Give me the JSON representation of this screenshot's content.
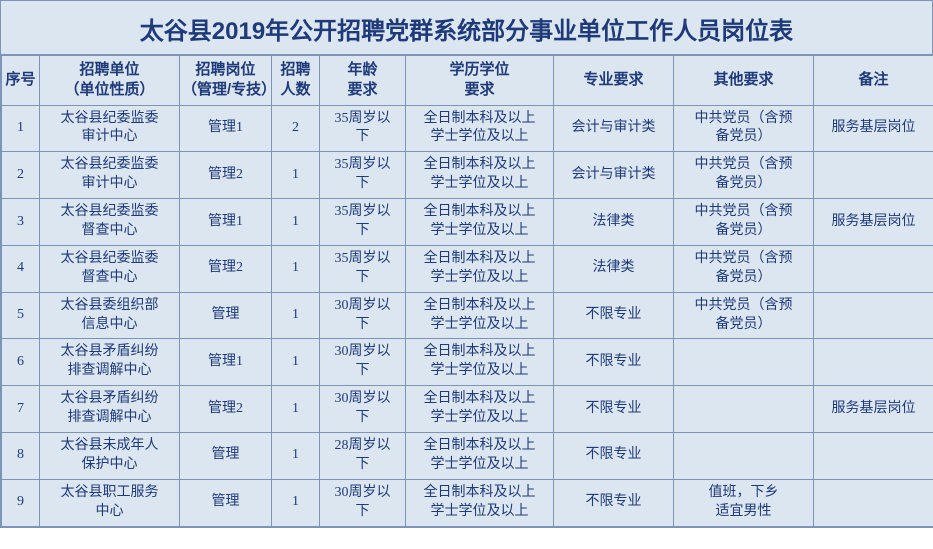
{
  "title": "太谷县2019年公开招聘党群系统部分事业单位工作人员岗位表",
  "title_fontsize": 24,
  "header_fontsize": 15,
  "cell_fontsize": 14,
  "colors": {
    "background": "#dce6f1",
    "border": "#7d94b8",
    "text": "#1e3a78"
  },
  "columns": [
    "序号",
    "招聘单位\n（单位性质）",
    "招聘岗位\n（管理/专技）",
    "招聘\n人数",
    "年龄\n要求",
    "学历学位\n要求",
    "专业要求",
    "其他要求",
    "备注"
  ],
  "rows": [
    {
      "seq": "1",
      "unit": "太谷县纪委监委\n审计中心",
      "post": "管理1",
      "num": "2",
      "age": "35周岁以\n下",
      "edu": "全日制本科及以上\n学士学位及以上",
      "major": "会计与审计类",
      "other": "中共党员（含预\n备党员）",
      "note": "服务基层岗位"
    },
    {
      "seq": "2",
      "unit": "太谷县纪委监委\n审计中心",
      "post": "管理2",
      "num": "1",
      "age": "35周岁以\n下",
      "edu": "全日制本科及以上\n学士学位及以上",
      "major": "会计与审计类",
      "other": "中共党员（含预\n备党员）",
      "note": ""
    },
    {
      "seq": "3",
      "unit": "太谷县纪委监委\n督查中心",
      "post": "管理1",
      "num": "1",
      "age": "35周岁以\n下",
      "edu": "全日制本科及以上\n学士学位及以上",
      "major": "法律类",
      "other": "中共党员（含预\n备党员）",
      "note": "服务基层岗位"
    },
    {
      "seq": "4",
      "unit": "太谷县纪委监委\n督查中心",
      "post": "管理2",
      "num": "1",
      "age": "35周岁以\n下",
      "edu": "全日制本科及以上\n学士学位及以上",
      "major": "法律类",
      "other": "中共党员（含预\n备党员）",
      "note": ""
    },
    {
      "seq": "5",
      "unit": "太谷县委组织部\n信息中心",
      "post": "管理",
      "num": "1",
      "age": "30周岁以\n下",
      "edu": "全日制本科及以上\n学士学位及以上",
      "major": "不限专业",
      "other": "中共党员（含预\n备党员）",
      "note": ""
    },
    {
      "seq": "6",
      "unit": "太谷县矛盾纠纷\n排查调解中心",
      "post": "管理1",
      "num": "1",
      "age": "30周岁以\n下",
      "edu": "全日制本科及以上\n学士学位及以上",
      "major": "不限专业",
      "other": "",
      "note": ""
    },
    {
      "seq": "7",
      "unit": "太谷县矛盾纠纷\n排查调解中心",
      "post": "管理2",
      "num": "1",
      "age": "30周岁以\n下",
      "edu": "全日制本科及以上\n学士学位及以上",
      "major": "不限专业",
      "other": "",
      "note": "服务基层岗位"
    },
    {
      "seq": "8",
      "unit": "太谷县未成年人\n保护中心",
      "post": "管理",
      "num": "1",
      "age": "28周岁以\n下",
      "edu": "全日制本科及以上\n学士学位及以上",
      "major": "不限专业",
      "other": "",
      "note": ""
    },
    {
      "seq": "9",
      "unit": "太谷县职工服务\n中心",
      "post": "管理",
      "num": "1",
      "age": "30周岁以\n下",
      "edu": "全日制本科及以上\n学士学位及以上",
      "major": "不限专业",
      "other": "值班，下乡\n适宜男性",
      "note": ""
    }
  ]
}
